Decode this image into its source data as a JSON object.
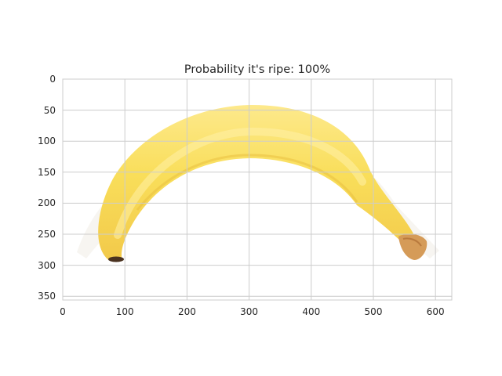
{
  "figure": {
    "title": "Probability it's ripe: 100%",
    "x_ticks": [
      "0",
      "100",
      "200",
      "300",
      "400",
      "500",
      "600"
    ],
    "y_ticks": [
      "0",
      "50",
      "100",
      "150",
      "200",
      "250",
      "300",
      "350"
    ],
    "grid": true,
    "image_subject": "banana",
    "colors": {
      "grid": "#cccccc",
      "spine": "#cccccc",
      "banana_body": "#f9de5a",
      "banana_highlight": "#fde98c",
      "banana_shadow": "#f2c94a",
      "banana_tip": "#d59b58",
      "banana_end": "#4a3220"
    }
  }
}
